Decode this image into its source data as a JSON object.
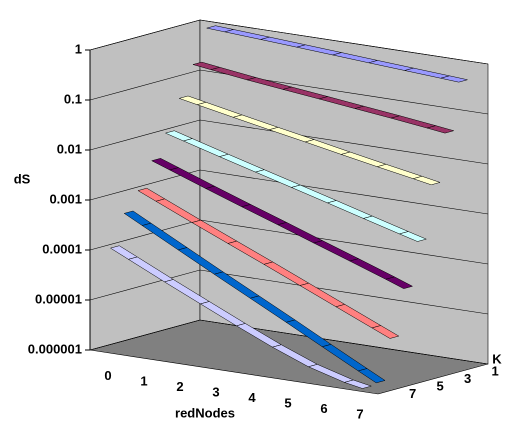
{
  "chart_data": {
    "type": "ribbon3d",
    "y_label": "dS",
    "x_label": "redNodes",
    "z_label": "K",
    "log_y": true,
    "categories": [
      "0",
      "1",
      "2",
      "3",
      "4",
      "5",
      "6",
      "7"
    ],
    "ylim": [
      1e-06,
      1
    ],
    "yticks": [
      1e-06,
      1e-05,
      0.0001,
      0.001,
      0.01,
      0.1,
      1
    ],
    "grid": true,
    "series": [
      {
        "name": "1",
        "color": "#9999ff",
        "values": [
          0.9,
          0.82,
          0.74,
          0.67,
          0.6,
          0.54,
          0.49,
          0.44
        ]
      },
      {
        "name": null,
        "color": "#993366",
        "values": [
          0.2,
          0.16,
          0.13,
          0.11,
          0.09,
          0.075,
          0.062,
          0.05
        ]
      },
      {
        "name": "3",
        "color": "#ffffcc",
        "values": [
          0.05,
          0.036,
          0.026,
          0.019,
          0.014,
          0.01,
          0.0075,
          0.0055
        ]
      },
      {
        "name": null,
        "color": "#ccffff",
        "values": [
          0.012,
          0.0075,
          0.0047,
          0.003,
          0.0019,
          0.0012,
          0.00075,
          0.00048
        ]
      },
      {
        "name": "5",
        "color": "#660066",
        "values": [
          0.004,
          0.0022,
          0.0012,
          0.00068,
          0.00038,
          0.00021,
          0.00012,
          6.5e-05
        ]
      },
      {
        "name": null,
        "color": "#ff8080",
        "values": [
          0.0012,
          0.00058,
          0.00028,
          0.00014,
          6.8e-05,
          3.3e-05,
          1.6e-05,
          7.8e-06
        ]
      },
      {
        "name": "7",
        "color": "#0066cc",
        "values": [
          0.0005,
          0.00021,
          8.8e-05,
          3.7e-05,
          1.6e-05,
          6.7e-06,
          2.8e-06,
          1.2e-06
        ]
      },
      {
        "name": null,
        "color": "#ccccff",
        "values": [
          0.00012,
          5.5e-05,
          2.5e-05,
          1.2e-05,
          5.5e-06,
          2.8e-06,
          1.5e-06,
          1.1e-06
        ]
      }
    ]
  }
}
